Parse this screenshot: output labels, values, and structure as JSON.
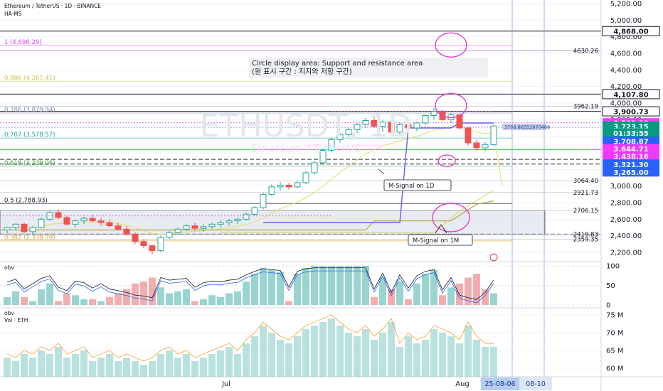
{
  "header": {
    "title": "Ethereum / TetherUS · 1D · BINANCE",
    "indicator": "HA-MS",
    "watermark_symbol": "ETHUSDT, 1D",
    "watermark_name": "Ethereum / TetherUS"
  },
  "annotations": {
    "circle_title_en": "Circle display area: Support and resistance area",
    "circle_title_ko": "(원 표시 구간 : 지지와 저항 구간)",
    "msignal_1d": "M-Signal on 1D",
    "msignal_1m": "M-Signal on 1M",
    "tooltip": "3708.86552970468"
  },
  "colors": {
    "up": "#26a69a",
    "down": "#ef5350",
    "magenta": "#e040fb",
    "blue_line": "#6a5cff",
    "fib_yellow": "#c9c24a",
    "price_badge_green": "#089981",
    "price_badge_magenta": "#f23aff",
    "price_badge_blue": "#2962ff"
  },
  "chart_data": {
    "type": "candlestick",
    "title": "Ethereum / TetherUS · 1D · BINANCE",
    "xaxis": {
      "labels": [
        "Jul",
        "Aug"
      ],
      "cursor_label": "25-08-06",
      "cursor_label_2": "08-10"
    },
    "price_axis": {
      "ticks": [
        "5,200.00",
        "5,000.00",
        "4,800.00",
        "4,600.00",
        "4,400.00",
        "4,200.00",
        "4,000.00",
        "3,800.00",
        "3,600.00",
        "3,400.00",
        "3,200.00",
        "3,000.00",
        "2,800.00",
        "2,600.00",
        "2,400.00",
        "2,200.00"
      ],
      "values": [
        5200,
        5000,
        4800,
        4600,
        4400,
        4200,
        4000,
        3800,
        3600,
        3400,
        3200,
        3000,
        2800,
        2600,
        2400,
        2200
      ],
      "range": [
        2100,
        5300
      ]
    },
    "price_badges": [
      {
        "label": "4,868.00",
        "value": 4868,
        "style": "black"
      },
      {
        "label": "4,107.80",
        "value": 4107.8,
        "style": "black"
      },
      {
        "label": "3,900.73",
        "value": 3900.73,
        "style": "black"
      },
      {
        "label": "3,762.33",
        "value": 3762.33,
        "style": "magenta"
      },
      {
        "label": "3,723.15",
        "value": 3723.15,
        "style": "green"
      },
      {
        "label": "01:33:55",
        "value": 3640,
        "style": "green"
      },
      {
        "label": "3,708.87",
        "value": 3540,
        "style": "blue"
      },
      {
        "label": "3,644.71",
        "value": 3450,
        "style": "magenta"
      },
      {
        "label": "3,438.16",
        "value": 3360,
        "style": "magenta"
      },
      {
        "label": "3,321.30",
        "value": 3265,
        "style": "blue"
      },
      {
        "label": "3,265.00",
        "value": 3170,
        "style": "blue"
      }
    ],
    "level_labels": [
      {
        "label": "4630.26",
        "value": 4630.26
      },
      {
        "label": "3962.19",
        "value": 3962.19
      },
      {
        "label": "3064.40",
        "value": 3064.4
      },
      {
        "label": "2921.73",
        "value": 2921.73
      },
      {
        "label": "2706.15",
        "value": 2706.15
      },
      {
        "label": "2419.83",
        "value": 2419.83
      },
      {
        "label": "2359.35",
        "value": 2359.35
      }
    ],
    "fib_levels": [
      {
        "label": "1 (4,696.29)",
        "value": 4696.29
      },
      {
        "label": "0.886 (4,261.41)",
        "value": 4261.41
      },
      {
        "label": "0.786 (3,879.94)",
        "value": 3879.94
      },
      {
        "label": "0.707 (3,578.57)",
        "value": 3578.57
      },
      {
        "label": "0.618 (3,239.06)",
        "value": 3239.06
      },
      {
        "label": "0.5 (2,788.93)",
        "value": 2788.93
      },
      {
        "label": "0.382 (2,338.79)",
        "value": 2338.79
      }
    ],
    "candles": [
      [
        2470,
        2510,
        2430,
        2500
      ],
      [
        2500,
        2550,
        2470,
        2540
      ],
      [
        2540,
        2560,
        2430,
        2450
      ],
      [
        2450,
        2520,
        2420,
        2500
      ],
      [
        2500,
        2620,
        2490,
        2600
      ],
      [
        2600,
        2700,
        2580,
        2680
      ],
      [
        2680,
        2720,
        2600,
        2620
      ],
      [
        2620,
        2640,
        2520,
        2540
      ],
      [
        2540,
        2600,
        2500,
        2580
      ],
      [
        2580,
        2630,
        2540,
        2610
      ],
      [
        2610,
        2650,
        2560,
        2580
      ],
      [
        2580,
        2620,
        2520,
        2560
      ],
      [
        2560,
        2600,
        2500,
        2520
      ],
      [
        2520,
        2560,
        2460,
        2480
      ],
      [
        2480,
        2520,
        2400,
        2420
      ],
      [
        2420,
        2440,
        2300,
        2330
      ],
      [
        2330,
        2360,
        2250,
        2280
      ],
      [
        2280,
        2300,
        2180,
        2220
      ],
      [
        2220,
        2400,
        2200,
        2380
      ],
      [
        2380,
        2460,
        2360,
        2440
      ],
      [
        2440,
        2500,
        2420,
        2480
      ],
      [
        2480,
        2540,
        2460,
        2520
      ],
      [
        2520,
        2560,
        2460,
        2490
      ],
      [
        2490,
        2540,
        2450,
        2510
      ],
      [
        2510,
        2560,
        2480,
        2540
      ],
      [
        2540,
        2590,
        2500,
        2560
      ],
      [
        2560,
        2600,
        2520,
        2580
      ],
      [
        2580,
        2620,
        2540,
        2600
      ],
      [
        2600,
        2680,
        2580,
        2660
      ],
      [
        2660,
        2760,
        2640,
        2740
      ],
      [
        2740,
        2920,
        2720,
        2900
      ],
      [
        2900,
        3020,
        2880,
        2990
      ],
      [
        2990,
        3050,
        2940,
        3010
      ],
      [
        3010,
        3040,
        2960,
        2990
      ],
      [
        2990,
        3060,
        2970,
        3040
      ],
      [
        3040,
        3180,
        3020,
        3160
      ],
      [
        3160,
        3300,
        3140,
        3280
      ],
      [
        3280,
        3450,
        3260,
        3430
      ],
      [
        3430,
        3580,
        3410,
        3560
      ],
      [
        3560,
        3650,
        3520,
        3620
      ],
      [
        3620,
        3700,
        3590,
        3680
      ],
      [
        3680,
        3760,
        3640,
        3740
      ],
      [
        3740,
        3820,
        3700,
        3790
      ],
      [
        3790,
        3850,
        3700,
        3720
      ],
      [
        3720,
        3800,
        3650,
        3770
      ],
      [
        3770,
        3790,
        3600,
        3650
      ],
      [
        3650,
        3760,
        3620,
        3740
      ],
      [
        3740,
        3800,
        3680,
        3700
      ],
      [
        3700,
        3780,
        3660,
        3760
      ],
      [
        3760,
        3860,
        3740,
        3850
      ],
      [
        3850,
        3940,
        3800,
        3900
      ],
      [
        3900,
        3920,
        3780,
        3800
      ],
      [
        3800,
        3880,
        3760,
        3860
      ],
      [
        3860,
        3870,
        3680,
        3700
      ],
      [
        3700,
        3720,
        3480,
        3520
      ],
      [
        3520,
        3560,
        3420,
        3460
      ],
      [
        3460,
        3530,
        3420,
        3500
      ],
      [
        3500,
        3740,
        3480,
        3723
      ]
    ],
    "obv_panel": {
      "label": "obv",
      "ticks": [
        "100",
        "50",
        "0"
      ],
      "values": [
        100,
        50,
        0
      ]
    },
    "volume_panel": {
      "label": "obv",
      "label2": "Vol · ETH",
      "ticks": [
        "75 M",
        "70 M",
        "65 M",
        "60 M"
      ],
      "values": [
        75,
        70,
        65,
        60
      ]
    },
    "volume": [
      63,
      62,
      64,
      63,
      65,
      64,
      66,
      63,
      64,
      65,
      62,
      63,
      64,
      62,
      63,
      62,
      61,
      62,
      64,
      65,
      63,
      64,
      62,
      63,
      64,
      65,
      66,
      64,
      67,
      69,
      72,
      70,
      68,
      67,
      69,
      71,
      72,
      73,
      74,
      72,
      70,
      69,
      71,
      68,
      70,
      73,
      66,
      69,
      67,
      68,
      71,
      70,
      69,
      67,
      72,
      68,
      66,
      66
    ],
    "obv_hist": [
      20,
      35,
      -20,
      10,
      40,
      55,
      -10,
      -30,
      25,
      15,
      -15,
      10,
      -20,
      -30,
      -40,
      -55,
      -60,
      -70,
      45,
      30,
      35,
      40,
      -10,
      15,
      25,
      20,
      30,
      35,
      60,
      80,
      95,
      90,
      85,
      -10,
      80,
      95,
      100,
      100,
      100,
      100,
      100,
      100,
      100,
      -20,
      70,
      -40,
      60,
      -15,
      55,
      80,
      90,
      -25,
      45,
      -55,
      -70,
      -80,
      -40,
      30
    ]
  }
}
